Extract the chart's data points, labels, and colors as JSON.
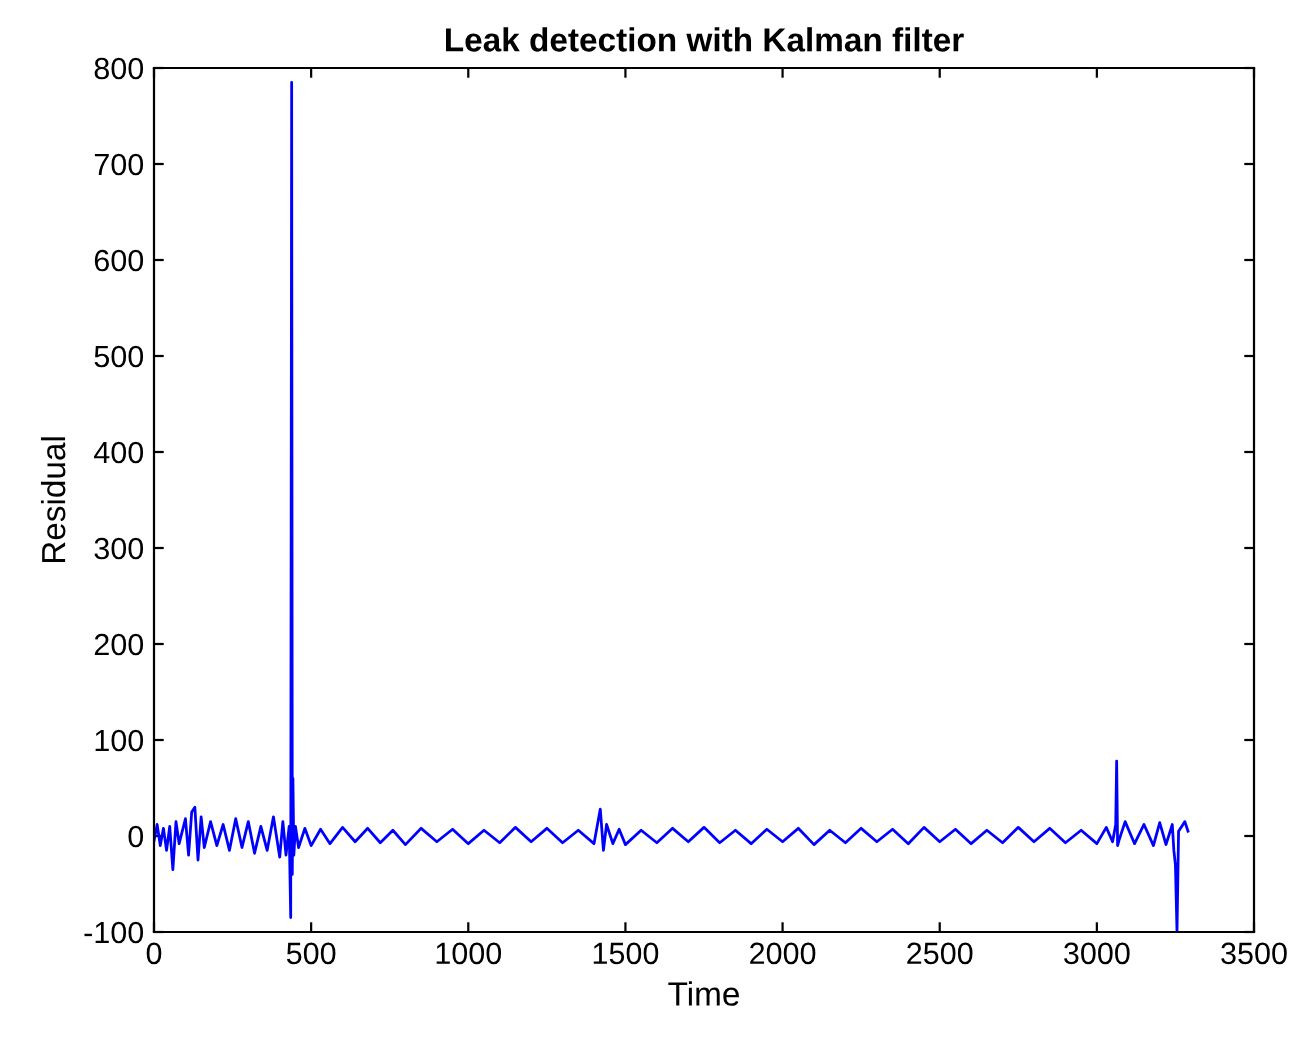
{
  "chart_data": {
    "type": "line",
    "title": "Leak detection with Kalman filter",
    "xlabel": "Time",
    "ylabel": "Residual",
    "xlim": [
      0,
      3500
    ],
    "ylim": [
      -100,
      800
    ],
    "xticks": [
      0,
      500,
      1000,
      1500,
      2000,
      2500,
      3000,
      3500
    ],
    "yticks": [
      -100,
      0,
      100,
      200,
      300,
      400,
      500,
      600,
      700,
      800
    ],
    "grid": false,
    "line_style": "solid",
    "marker": "none",
    "series": [
      {
        "color": "#0000ff",
        "x": [
          0,
          10,
          20,
          30,
          40,
          50,
          60,
          70,
          80,
          100,
          110,
          120,
          130,
          140,
          150,
          160,
          180,
          200,
          220,
          240,
          260,
          280,
          300,
          320,
          340,
          360,
          380,
          400,
          410,
          420,
          430,
          435,
          438,
          440,
          442,
          445,
          450,
          460,
          480,
          500,
          530,
          560,
          600,
          640,
          680,
          720,
          760,
          800,
          850,
          900,
          950,
          1000,
          1050,
          1100,
          1150,
          1200,
          1250,
          1300,
          1350,
          1400,
          1420,
          1430,
          1440,
          1460,
          1480,
          1500,
          1550,
          1600,
          1650,
          1700,
          1750,
          1800,
          1850,
          1900,
          1950,
          2000,
          2050,
          2100,
          2150,
          2200,
          2250,
          2300,
          2350,
          2400,
          2450,
          2500,
          2550,
          2600,
          2650,
          2700,
          2750,
          2800,
          2850,
          2900,
          2950,
          3000,
          3030,
          3050,
          3060,
          3063,
          3066,
          3070,
          3090,
          3120,
          3150,
          3180,
          3200,
          3220,
          3240,
          3245,
          3250,
          3255,
          3260,
          3270,
          3280,
          3290
        ],
        "values": [
          -5,
          12,
          -10,
          8,
          -15,
          10,
          -35,
          15,
          -8,
          18,
          -20,
          25,
          30,
          -25,
          20,
          -12,
          15,
          -10,
          12,
          -15,
          18,
          -12,
          15,
          -18,
          10,
          -15,
          20,
          -22,
          15,
          -20,
          10,
          -85,
          785,
          -40,
          60,
          -20,
          10,
          -12,
          8,
          -10,
          7,
          -8,
          9,
          -6,
          8,
          -7,
          6,
          -9,
          8,
          -6,
          7,
          -8,
          6,
          -7,
          9,
          -6,
          8,
          -7,
          6,
          -8,
          28,
          -15,
          12,
          -8,
          7,
          -9,
          6,
          -7,
          8,
          -6,
          9,
          -7,
          6,
          -8,
          7,
          -6,
          8,
          -9,
          6,
          -7,
          8,
          -6,
          7,
          -8,
          9,
          -6,
          7,
          -8,
          6,
          -7,
          9,
          -6,
          8,
          -7,
          6,
          -8,
          9,
          -6,
          12,
          78,
          -10,
          -5,
          15,
          -8,
          12,
          -10,
          14,
          -9,
          12,
          -15,
          -30,
          -100,
          5,
          10,
          15,
          5
        ]
      }
    ]
  }
}
